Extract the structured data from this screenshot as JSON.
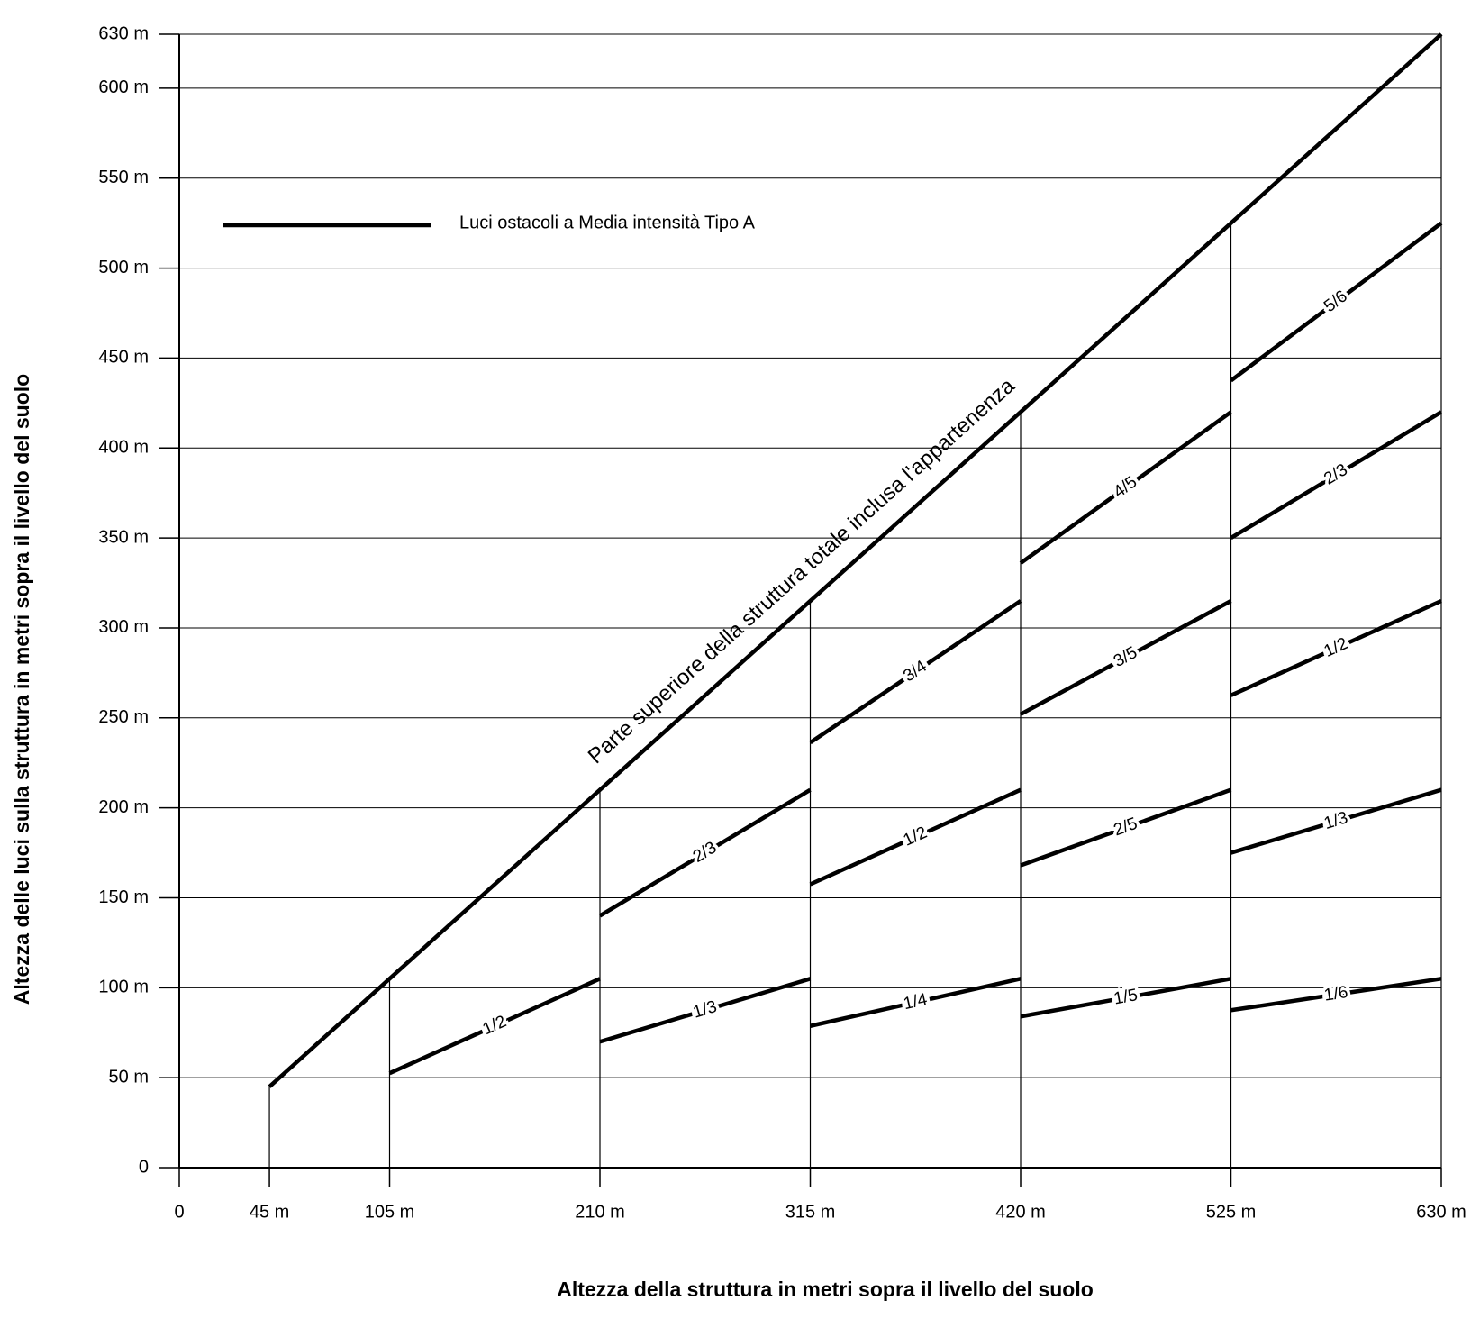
{
  "chart_data": {
    "type": "line",
    "x_label": "Altezza della struttura in metri sopra il livello del suolo",
    "y_label": "Altezza delle luci sulla struttura in metri sopra il livello del suolo",
    "legend": "Luci ostacoli a Media intensità Tipo A",
    "annotation": "Parte superiore della struttura totale inclusa l'appartenenza",
    "color": "#000000",
    "grid": true,
    "xlim": [
      0,
      630
    ],
    "ylim": [
      0,
      630
    ],
    "xticks": [
      0,
      {
        "value": 45,
        "label": "45 m"
      },
      {
        "value": 105,
        "label": "105 m"
      },
      {
        "value": 210,
        "label": "210 m"
      },
      {
        "value": 315,
        "label": "315 m"
      },
      {
        "value": 420,
        "label": "420 m"
      },
      {
        "value": 525,
        "label": "525 m"
      },
      {
        "value": 630,
        "label": "630 m"
      }
    ],
    "yticks": [
      0,
      {
        "value": 50,
        "label": "50 m"
      },
      {
        "value": 100,
        "label": "100 m"
      },
      {
        "value": 150,
        "label": "150 m"
      },
      {
        "value": 200,
        "label": "200 m"
      },
      {
        "value": 250,
        "label": "250 m"
      },
      {
        "value": 300,
        "label": "300 m"
      },
      {
        "value": 350,
        "label": "350 m"
      },
      {
        "value": 400,
        "label": "400 m"
      },
      {
        "value": 450,
        "label": "450 m"
      },
      {
        "value": 500,
        "label": "500 m"
      },
      {
        "value": 550,
        "label": "550 m"
      },
      {
        "value": 600,
        "label": "600 m"
      },
      {
        "value": 630,
        "label": "630 m"
      }
    ],
    "top_line": {
      "x": [
        45,
        630
      ],
      "values": [
        45,
        630
      ]
    },
    "segments": [
      {
        "label": "1/2",
        "x": [
          105,
          210
        ],
        "values": [
          52.5,
          105
        ]
      },
      {
        "label": "2/3",
        "x": [
          210,
          315
        ],
        "values": [
          140,
          210
        ]
      },
      {
        "label": "1/3",
        "x": [
          210,
          315
        ],
        "values": [
          70,
          105
        ]
      },
      {
        "label": "3/4",
        "x": [
          315,
          420
        ],
        "values": [
          236.25,
          315
        ]
      },
      {
        "label": "1/2",
        "x": [
          315,
          420
        ],
        "values": [
          157.5,
          210
        ]
      },
      {
        "label": "1/4",
        "x": [
          315,
          420
        ],
        "values": [
          78.75,
          105
        ]
      },
      {
        "label": "4/5",
        "x": [
          420,
          525
        ],
        "values": [
          336,
          420
        ]
      },
      {
        "label": "3/5",
        "x": [
          420,
          525
        ],
        "values": [
          252,
          315
        ]
      },
      {
        "label": "2/5",
        "x": [
          420,
          525
        ],
        "values": [
          168,
          210
        ]
      },
      {
        "label": "1/5",
        "x": [
          420,
          525
        ],
        "values": [
          84,
          105
        ]
      },
      {
        "label": "5/6",
        "x": [
          525,
          630
        ],
        "values": [
          437.5,
          525
        ]
      },
      {
        "label": "2/3",
        "x": [
          525,
          630
        ],
        "values": [
          350,
          420
        ]
      },
      {
        "label": "1/2",
        "x": [
          525,
          630
        ],
        "values": [
          262.5,
          315
        ]
      },
      {
        "label": "1/3",
        "x": [
          525,
          630
        ],
        "values": [
          175,
          210
        ]
      },
      {
        "label": "1/6",
        "x": [
          525,
          630
        ],
        "values": [
          87.5,
          105
        ]
      }
    ]
  }
}
